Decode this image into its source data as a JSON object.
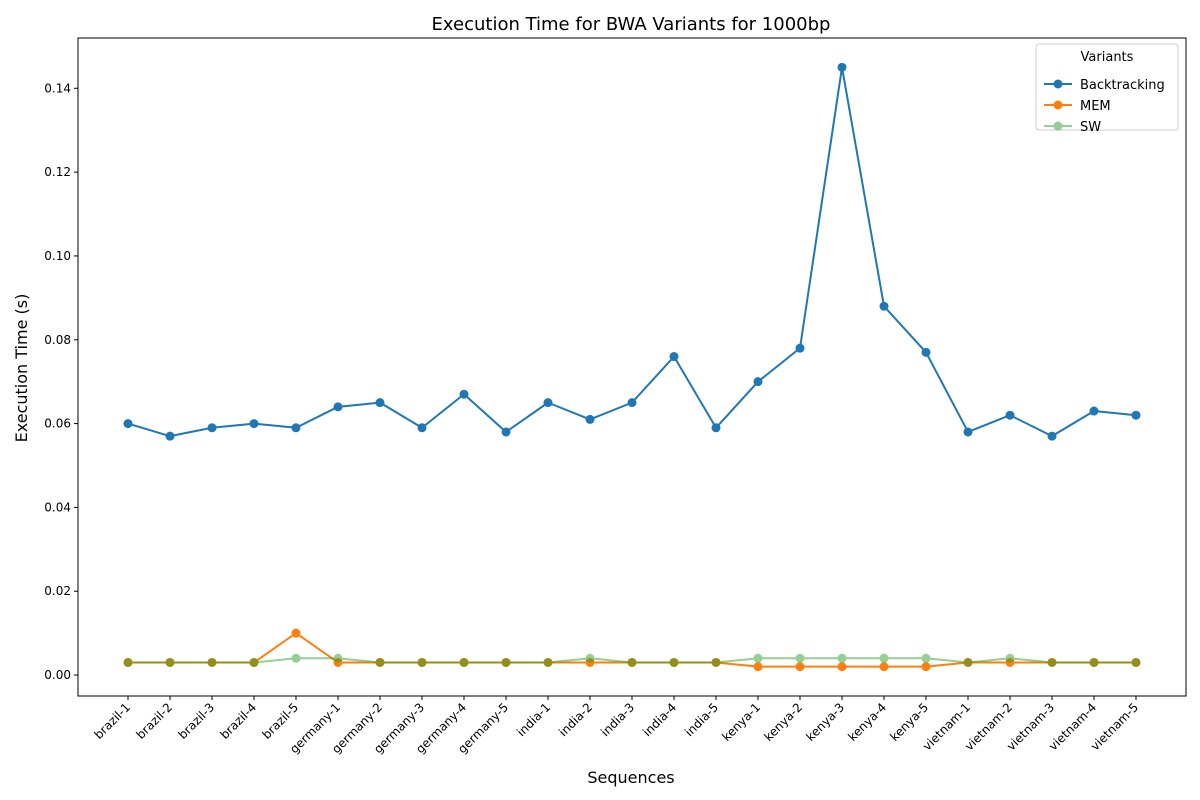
{
  "chart_data": {
    "type": "line",
    "title": "Execution Time for BWA Variants for 1000bp",
    "xlabel": "Sequences",
    "ylabel": "Execution Time (s)",
    "ylim": [
      -0.005,
      0.152
    ],
    "yticks": [
      0.0,
      0.02,
      0.04,
      0.06,
      0.08,
      0.1,
      0.12,
      0.14
    ],
    "ytick_labels": [
      "0.00",
      "0.02",
      "0.04",
      "0.06",
      "0.08",
      "0.10",
      "0.12",
      "0.14"
    ],
    "grid": false,
    "legend": {
      "title": "Variants",
      "placement": "top-right"
    },
    "categories": [
      "brazil-1",
      "brazil-2",
      "brazil-3",
      "brazil-4",
      "brazil-5",
      "germany-1",
      "germany-2",
      "germany-3",
      "germany-4",
      "germany-5",
      "india-1",
      "india-2",
      "india-3",
      "india-4",
      "india-5",
      "kenya-1",
      "kenya-2",
      "kenya-3",
      "kenya-4",
      "kenya-5",
      "vietnam-1",
      "vietnam-2",
      "vietnam-3",
      "vietnam-4",
      "vietnam-5"
    ],
    "series": [
      {
        "name": "Backtracking",
        "color": "#1f77b4",
        "opacity": 1.0,
        "values": [
          0.06,
          0.057,
          0.059,
          0.06,
          0.059,
          0.064,
          0.065,
          0.059,
          0.067,
          0.058,
          0.065,
          0.061,
          0.065,
          0.076,
          0.059,
          0.07,
          0.078,
          0.145,
          0.088,
          0.077,
          0.058,
          0.062,
          0.057,
          0.063,
          0.062
        ]
      },
      {
        "name": "MEM",
        "color": "#ff7f0e",
        "opacity": 1.0,
        "values": [
          0.003,
          0.003,
          0.003,
          0.003,
          0.01,
          0.003,
          0.003,
          0.003,
          0.003,
          0.003,
          0.003,
          0.003,
          0.003,
          0.003,
          0.003,
          0.002,
          0.002,
          0.002,
          0.002,
          0.002,
          0.003,
          0.003,
          0.003,
          0.003,
          0.003
        ]
      },
      {
        "name": "SW",
        "color": "#2ca02c",
        "opacity": 0.5,
        "values": [
          0.003,
          0.003,
          0.003,
          0.003,
          0.004,
          0.004,
          0.003,
          0.003,
          0.003,
          0.003,
          0.003,
          0.004,
          0.003,
          0.003,
          0.003,
          0.004,
          0.004,
          0.004,
          0.004,
          0.004,
          0.003,
          0.004,
          0.003,
          0.003,
          0.003
        ]
      }
    ]
  }
}
